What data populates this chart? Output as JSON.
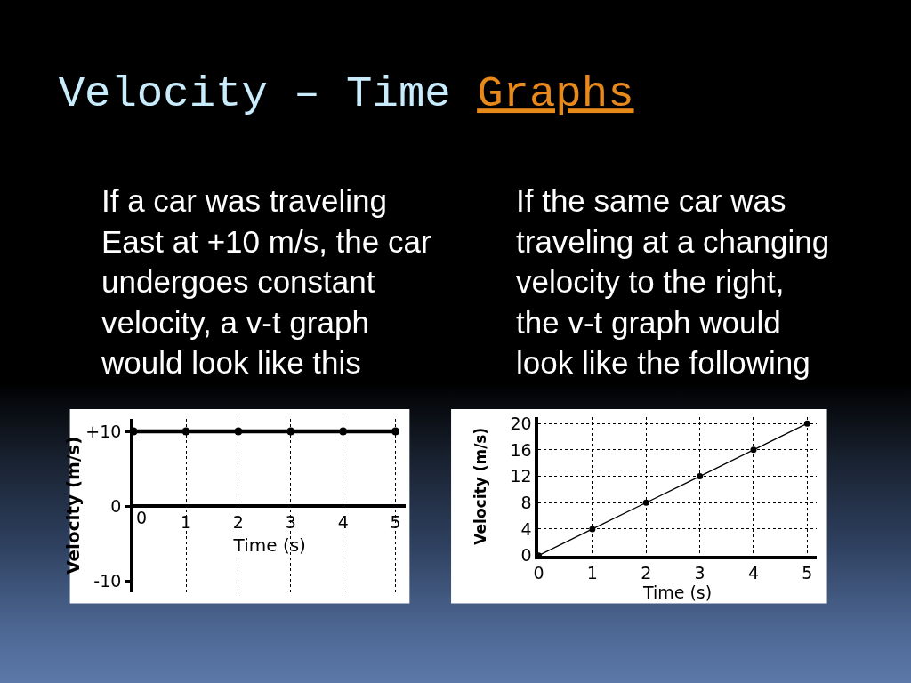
{
  "chart_data": [
    {
      "type": "other",
      "title": "Velocity – Time Graphs",
      "annotations": [
        "If a car was traveling\nEast at +10 m/s, the car\nundergoes constant\nvelocity, a v-t graph\nwould look like this",
        "If the same car was\ntraveling at a changing\nvelocity to the right,\nthe v-t graph would\nlook like the following"
      ]
    },
    {
      "type": "line",
      "x": [
        0,
        1,
        2,
        3,
        4,
        5
      ],
      "series": [
        {
          "color": "#000000",
          "values": [
            10,
            10,
            10,
            10,
            10,
            10
          ]
        }
      ],
      "xlabel": "Time (s)",
      "ylabel": "Velocity (m/s)",
      "xlim": [
        0,
        5.2
      ],
      "ylim": [
        -11.5,
        11.7
      ],
      "xticks": [
        0,
        1,
        2,
        3,
        4,
        5
      ],
      "yticks": [
        {
          "value": 10,
          "label": "+10"
        },
        0,
        -10
      ],
      "grid": "x",
      "marker": "circle"
    },
    {
      "type": "line",
      "x": [
        0,
        1,
        2,
        3,
        4,
        5
      ],
      "series": [
        {
          "color": "#000000",
          "values": [
            0,
            4,
            8,
            12,
            16,
            20
          ]
        }
      ],
      "xlabel": "Time (s)",
      "ylabel": "Velocity (m/s)",
      "xlim": [
        0,
        5.17
      ],
      "ylim": [
        0,
        21
      ],
      "xticks": [
        0,
        1,
        2,
        3,
        4,
        5
      ],
      "yticks": [
        0,
        4,
        8,
        12,
        16,
        20
      ],
      "grid": true,
      "marker": "circle"
    }
  ]
}
